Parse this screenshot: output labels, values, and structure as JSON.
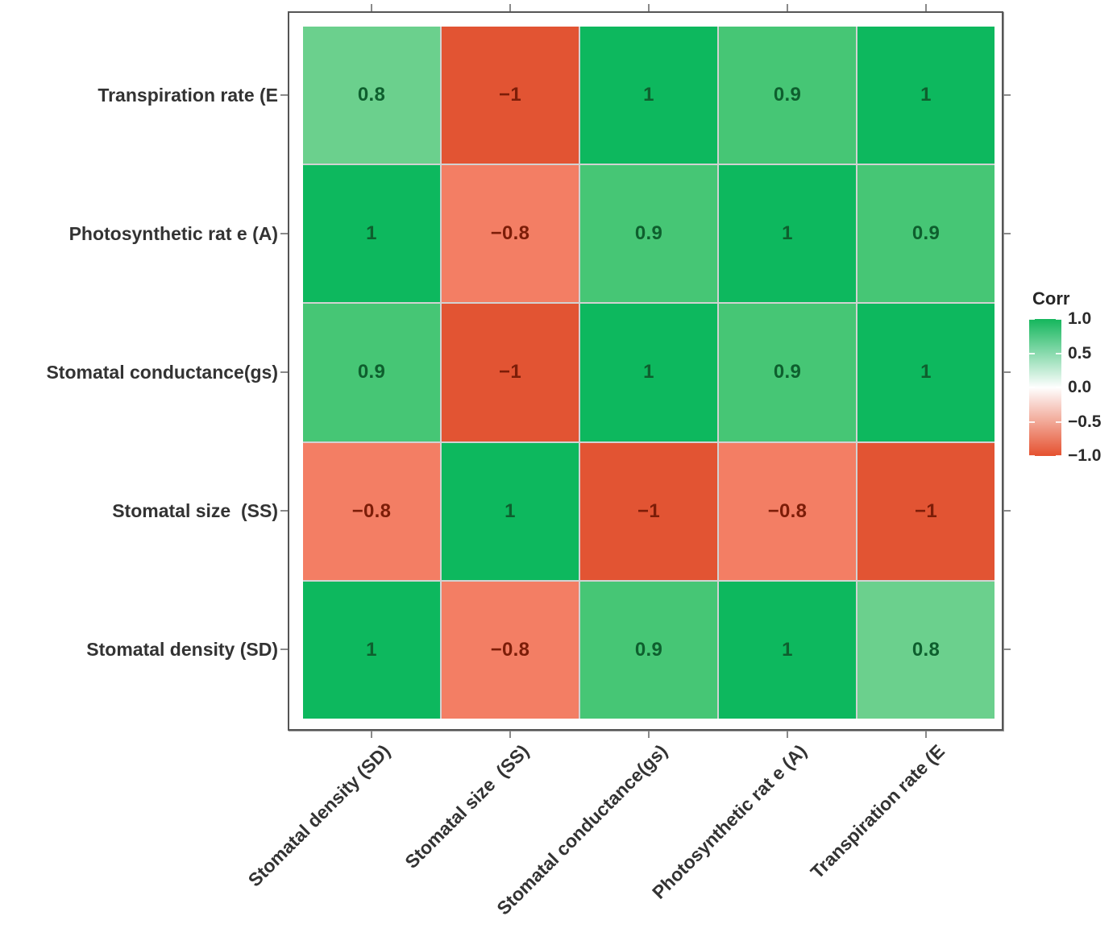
{
  "chart_data": {
    "type": "heatmap",
    "title": "",
    "legend_title": "Corr",
    "x_categories": [
      "Stomatal density (SD)",
      "Stomatal size  (SS)",
      "Stomatal conductance(gs)",
      "Photosynthetic rat e (A)",
      "Transpiration rate (E"
    ],
    "y_categories_top_to_bottom": [
      "Transpiration rate (E",
      "Photosynthetic rat e (A)",
      "Stomatal conductance(gs)",
      "Stomatal size  (SS)",
      "Stomatal density (SD)"
    ],
    "matrix_rows_top_to_bottom": [
      [
        0.8,
        -1,
        1,
        0.9,
        1
      ],
      [
        1,
        -0.8,
        0.9,
        1,
        0.9
      ],
      [
        0.9,
        -1,
        1,
        0.9,
        1
      ],
      [
        -0.8,
        1,
        -1,
        -0.8,
        -1
      ],
      [
        1,
        -0.8,
        0.9,
        1,
        0.8
      ]
    ],
    "value_range": [
      -1,
      1
    ],
    "grid": "off",
    "legend_position": "right",
    "colorbar_tick_labels": [
      "1.0",
      "0.5",
      "0.0",
      "−0.5",
      "−1.0"
    ],
    "colorbar_tick_values": [
      1.0,
      0.5,
      0.0,
      -0.5,
      -1.0
    ],
    "colors": {
      "fill_by_value": {
        "1": "#0db85e",
        "0.9": "#46c675",
        "0.8": "#6bd08d",
        "-0.8": "#f37e64",
        "-1": "#e25433"
      },
      "gradient_high": "#14b65c",
      "gradient_mid": "#fefefe",
      "gradient_low": "#e5512f",
      "label_positive": "#0e5f2e",
      "label_negative": "#7c1d08",
      "axis_text": "#333333",
      "panel_border": "#555555",
      "tick": "#8a8a8a"
    }
  }
}
